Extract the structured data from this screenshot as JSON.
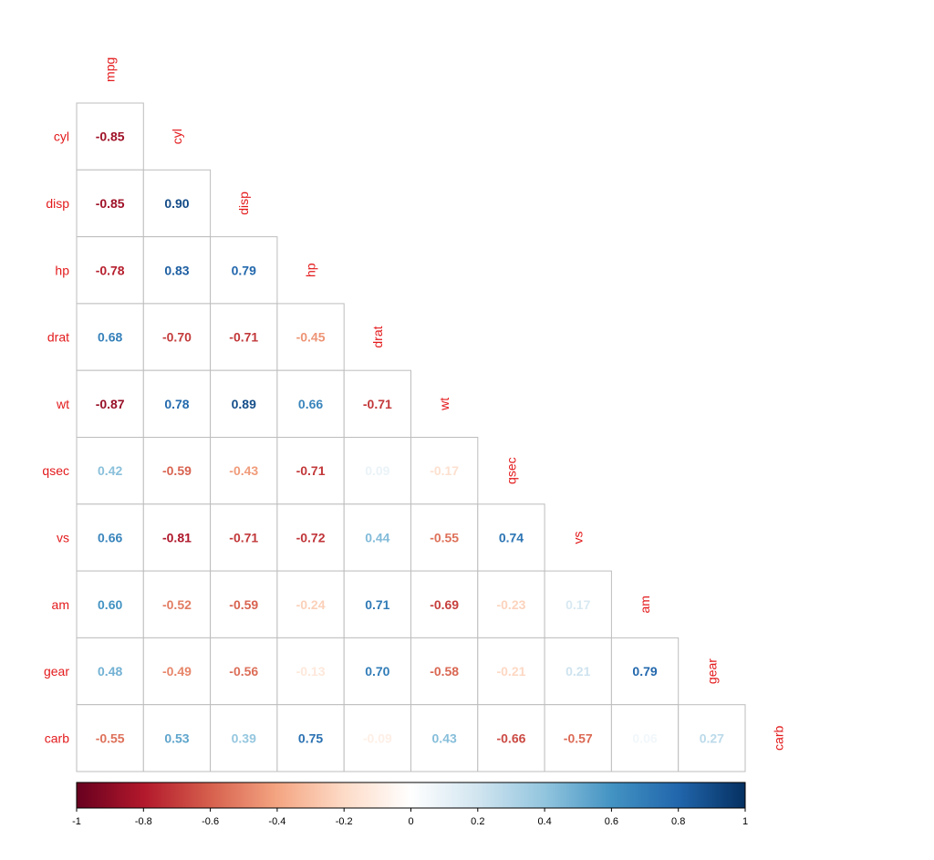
{
  "chart_data": {
    "type": "heatmap",
    "layout": "lower-triangular",
    "variables": [
      "mpg",
      "cyl",
      "disp",
      "hp",
      "drat",
      "wt",
      "qsec",
      "vs",
      "am",
      "gear",
      "carb"
    ],
    "label_color": "#e31a1c",
    "matrix": [
      [
        -0.85
      ],
      [
        -0.85,
        0.9
      ],
      [
        -0.78,
        0.83,
        0.79
      ],
      [
        0.68,
        -0.7,
        -0.71,
        -0.45
      ],
      [
        -0.87,
        0.78,
        0.89,
        0.66,
        -0.71
      ],
      [
        0.42,
        -0.59,
        -0.43,
        -0.71,
        0.09,
        -0.17
      ],
      [
        0.66,
        -0.81,
        -0.71,
        -0.72,
        0.44,
        -0.55,
        0.74
      ],
      [
        0.6,
        -0.52,
        -0.59,
        -0.24,
        0.71,
        -0.69,
        -0.23,
        0.17
      ],
      [
        0.48,
        -0.49,
        -0.56,
        -0.13,
        0.7,
        -0.58,
        -0.21,
        0.21,
        0.79
      ],
      [
        -0.55,
        0.53,
        0.39,
        0.75,
        -0.09,
        0.43,
        -0.66,
        -0.57,
        0.06,
        0.27
      ]
    ],
    "colorbar": {
      "range": [
        -1,
        1
      ],
      "ticks": [
        "-1",
        "-0.8",
        "-0.6",
        "-0.4",
        "-0.2",
        "0",
        "0.2",
        "0.4",
        "0.6",
        "0.8",
        "1"
      ],
      "palette": [
        "#67001f",
        "#b2182b",
        "#d6604d",
        "#f4a582",
        "#fddbc7",
        "#ffffff",
        "#d1e5f0",
        "#92c5de",
        "#4393c3",
        "#2166ac",
        "#053061"
      ]
    }
  }
}
